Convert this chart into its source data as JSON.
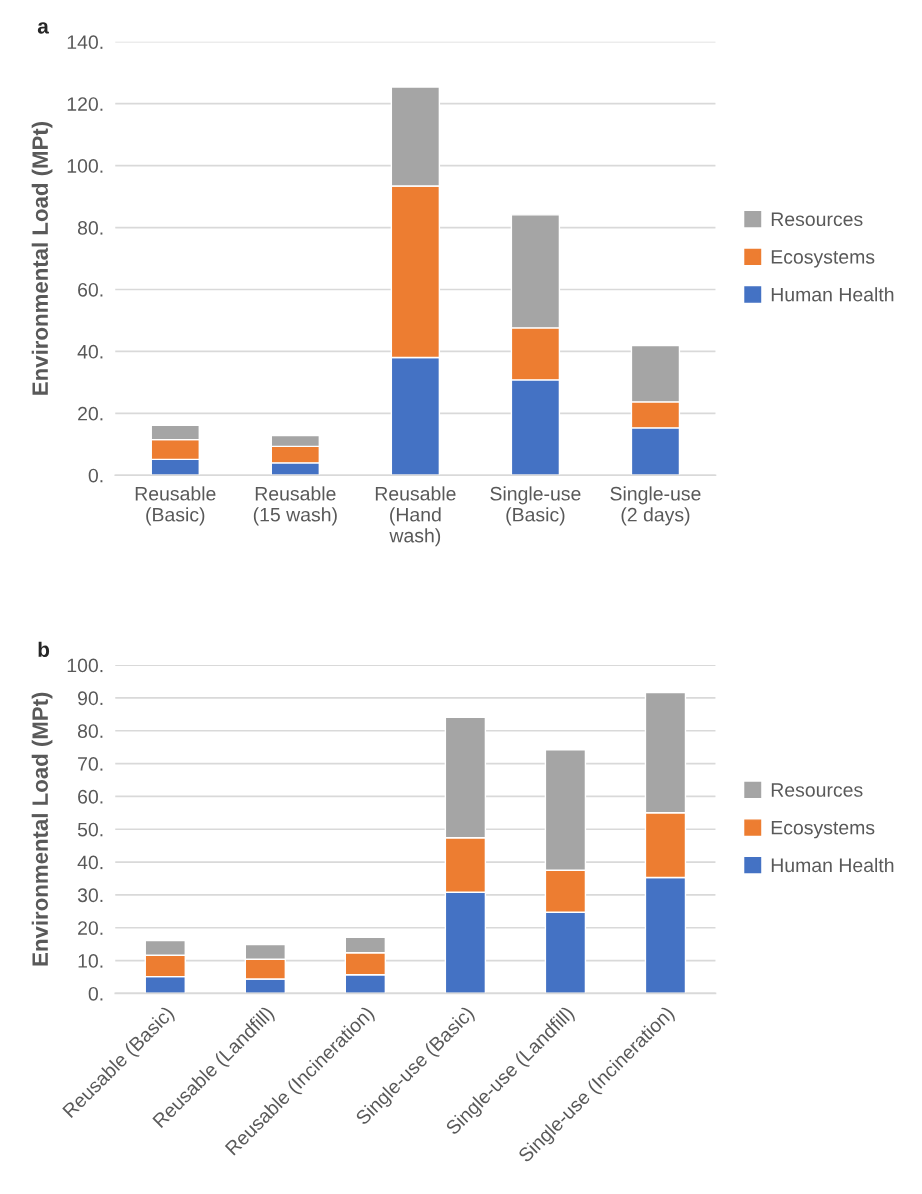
{
  "chart_data": [
    {
      "type": "bar",
      "title": "a",
      "ylabel": "Environmental Load (MPt)",
      "stacked": true,
      "grid": "y",
      "legend": "right",
      "categories": [
        "Reusable\n(Basic)",
        "Reusable\n(15 wash)",
        "Reusable\n(Hand\nwash)",
        "Single-use\n(Basic)",
        "Single-use\n(2 days)"
      ],
      "series": [
        {
          "name": "Human Health",
          "color": "#4472c4",
          "values": [
            5.1,
            4.0,
            38.0,
            30.8,
            15.3
          ]
        },
        {
          "name": "Ecosystems",
          "color": "#ed7d31",
          "values": [
            6.4,
            5.3,
            55.4,
            16.8,
            8.4
          ]
        },
        {
          "name": "Resources",
          "color": "#a5a5a5",
          "values": [
            4.6,
            3.5,
            32.0,
            36.5,
            18.2
          ]
        }
      ],
      "ylim": [
        0,
        140
      ],
      "yticks": [
        {
          "value": 0,
          "label": "0."
        },
        {
          "value": 20,
          "label": "20."
        },
        {
          "value": 40,
          "label": "40."
        },
        {
          "value": 60,
          "label": "60."
        },
        {
          "value": 80,
          "label": "80."
        },
        {
          "value": 100,
          "label": "100."
        },
        {
          "value": 120,
          "label": "120."
        },
        {
          "value": 140,
          "label": "140."
        }
      ]
    },
    {
      "type": "bar",
      "title": "b",
      "ylabel": "Environmental Load (MPt)",
      "stacked": true,
      "grid": "y",
      "legend": "right",
      "categories": [
        "Reusable (Basic)",
        "Reusable (Landfill)",
        "Reusable (Incineration)",
        "Single-use (Basic)",
        "Single-use (Landfill)",
        "Single-use (Incineration)"
      ],
      "series": [
        {
          "name": "Human Health",
          "color": "#4472c4",
          "values": [
            5.1,
            4.4,
            5.7,
            30.8,
            24.7,
            35.3
          ]
        },
        {
          "name": "Ecosystems",
          "color": "#ed7d31",
          "values": [
            6.5,
            6.0,
            6.7,
            16.6,
            12.8,
            19.7
          ]
        },
        {
          "name": "Resources",
          "color": "#a5a5a5",
          "values": [
            4.5,
            4.5,
            4.7,
            36.7,
            36.7,
            36.6
          ]
        }
      ],
      "ylim": [
        0,
        100
      ],
      "yticks": [
        {
          "value": 0,
          "label": "0."
        },
        {
          "value": 10,
          "label": "10."
        },
        {
          "value": 20,
          "label": "20."
        },
        {
          "value": 30,
          "label": "30."
        },
        {
          "value": 40,
          "label": "40."
        },
        {
          "value": 50,
          "label": "50."
        },
        {
          "value": 60,
          "label": "60."
        },
        {
          "value": 70,
          "label": "70."
        },
        {
          "value": 80,
          "label": "80."
        },
        {
          "value": 90,
          "label": "90."
        },
        {
          "value": 100,
          "label": "100."
        }
      ]
    }
  ]
}
